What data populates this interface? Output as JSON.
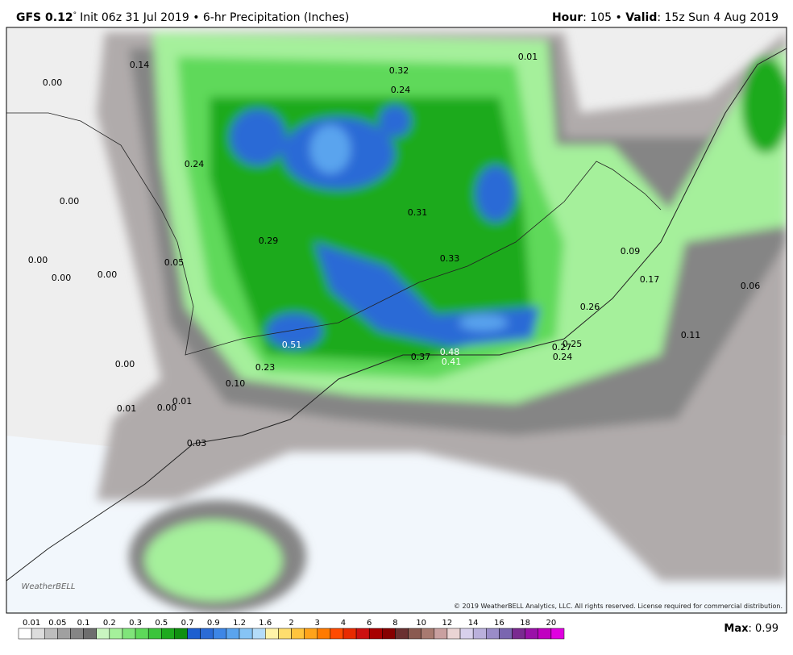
{
  "header": {
    "model": "GFS 0.12",
    "degree": "°",
    "init": "Init 06z 31 Jul 2019 • 6-hr Precipitation (Inches)",
    "hour_label": "Hour",
    "hour_value": ": 105 • ",
    "valid_label": "Valid",
    "valid_value": ": 15z Sun 4 Aug 2019"
  },
  "map": {
    "labels": [
      "0.14",
      "0.00",
      "0.32",
      "0.24",
      "0.01",
      "0.24",
      "0.00",
      "0.31",
      "0.29",
      "0.33",
      "0.09",
      "0.00",
      "0.05",
      "0.00",
      "0.00",
      "0.17",
      "0.06",
      "0.26",
      "0.11",
      "0.51",
      "0.25",
      "0.27",
      "0.48",
      "0.37",
      "0.24",
      "0.41",
      "0.00",
      "0.23",
      "0.10",
      "0.01",
      "0.00",
      "0.01",
      "0.03"
    ],
    "copyright": "© 2019 WeatherBELL Analytics, LLC. All rights reserved. License required for commercial distribution.",
    "logo": "WeatherBELL"
  },
  "legend": {
    "levels": [
      "0.01",
      "0.05",
      "0.1",
      "0.2",
      "0.3",
      "0.5",
      "0.7",
      "0.9",
      "1.2",
      "1.6",
      "2",
      "3",
      "4",
      "6",
      "8",
      "10",
      "12",
      "14",
      "16",
      "18",
      "20"
    ]
  },
  "max": {
    "label": "Max",
    "value": ": 0.99"
  }
}
